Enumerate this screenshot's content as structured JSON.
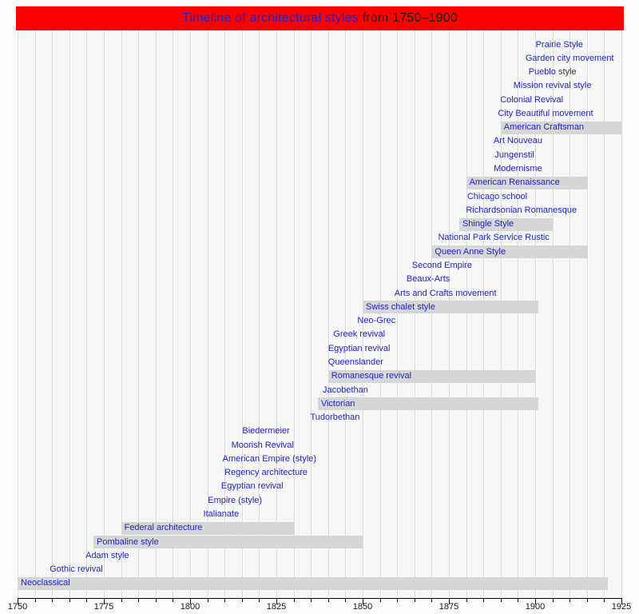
{
  "title": {
    "linked_part": "Timeline of architectural styles",
    "plain_part": " from 1750–1900"
  },
  "colors": {
    "banner_bg": "#fe0000",
    "link_blue": "#2121cc",
    "plain_text": "#1a1a1a",
    "bar_fill": "#d6d6d6",
    "grid_line": "#d9d9d9",
    "plot_bg": "#f6f6f6",
    "page_bg": "#fbfbfb",
    "axis": "#000000"
  },
  "chart_data": {
    "type": "timeline",
    "title": "Timeline of architectural styles from 1750–1900",
    "x_axis": {
      "min": 1750,
      "max": 1925,
      "major_tick_step": 25,
      "minor_tick_step": 5,
      "tick_labels": [
        "1750",
        "1775",
        "1800",
        "1825",
        "1850",
        "1875",
        "1900",
        "1925"
      ],
      "grid": "minor vertical lines every 5 years"
    },
    "legend": "gray bars mark the depicted period for highlighted styles; blue text entries are link labels anchored at their period",
    "styles": [
      {
        "label": "Prairie Style",
        "label_year": 1907,
        "bar": null
      },
      {
        "label": "Garden city movement",
        "label_year": 1910,
        "bar": null
      },
      {
        "label": "Pueblo",
        "label_suffix": " style",
        "label_year": 1905,
        "bar": null
      },
      {
        "label": "Mission revival style",
        "label_year": 1905,
        "bar": null
      },
      {
        "label": "Colonial Revival",
        "label_year": 1899,
        "bar": null
      },
      {
        "label": "City Beautiful movement",
        "label_year": 1903,
        "bar": null
      },
      {
        "label": "American Craftsman",
        "label_year": 1890,
        "bar": {
          "start": 1890,
          "end": 1925
        }
      },
      {
        "label": "Art Nouveau",
        "label_year": 1895,
        "bar": null
      },
      {
        "label": "Jungenstil",
        "label_year": 1894,
        "bar": null
      },
      {
        "label": "Modernisme",
        "label_year": 1895,
        "bar": null
      },
      {
        "label": "American Renaissance",
        "label_year": 1880,
        "bar": {
          "start": 1880,
          "end": 1915
        }
      },
      {
        "label": "Chicago school",
        "label_year": 1889,
        "bar": null
      },
      {
        "label": "Richardsonian Romanesque",
        "label_year": 1896,
        "bar": null
      },
      {
        "label": "Shingle Style",
        "label_year": 1878,
        "bar": {
          "start": 1878,
          "end": 1905
        }
      },
      {
        "label": "National Park Service Rustic",
        "label_year": 1888,
        "bar": null
      },
      {
        "label": "Queen Anne Style",
        "label_year": 1870,
        "bar": {
          "start": 1870,
          "end": 1915
        }
      },
      {
        "label": "Second Empire",
        "label_year": 1873,
        "bar": null
      },
      {
        "label": "Beaux-Arts",
        "label_year": 1869,
        "bar": null
      },
      {
        "label": "Arts and Crafts movement",
        "label_year": 1874,
        "bar": null
      },
      {
        "label": "Swiss chalet style",
        "label_year": 1850,
        "bar": {
          "start": 1850,
          "end": 1901
        }
      },
      {
        "label": "Neo-Grec",
        "label_year": 1854,
        "bar": null
      },
      {
        "label": "Greek revival",
        "label_year": 1849,
        "bar": null
      },
      {
        "label": "Egyptian revival",
        "label_year": 1849,
        "bar": null
      },
      {
        "label": "Queenslander",
        "label_year": 1848,
        "bar": null
      },
      {
        "label": "Romanesque revival",
        "label_year": 1840,
        "bar": {
          "start": 1840,
          "end": 1900
        }
      },
      {
        "label": "Jacobethan",
        "label_year": 1845,
        "bar": null
      },
      {
        "label": "Victorian",
        "label_year": 1837,
        "bar": {
          "start": 1837,
          "end": 1901
        }
      },
      {
        "label": "Tudorbethan",
        "label_year": 1842,
        "bar": null
      },
      {
        "label": "Biedermeier",
        "label_year": 1822,
        "bar": null
      },
      {
        "label": "Moorish Revival",
        "label_year": 1821,
        "bar": null
      },
      {
        "label": "American Empire (style)",
        "label_year": 1823,
        "bar": null
      },
      {
        "label": "Regency architecture",
        "label_year": 1822,
        "bar": null
      },
      {
        "label": "Egyptian revival",
        "label_year": 1818,
        "bar": null
      },
      {
        "label": "Empire (style)",
        "label_year": 1813,
        "bar": null
      },
      {
        "label": "Italianate",
        "label_year": 1809,
        "bar": null
      },
      {
        "label": "Federal architecture",
        "label_year": 1780,
        "bar": {
          "start": 1780,
          "end": 1830
        }
      },
      {
        "label": "Pombaline style",
        "label_year": 1772,
        "bar": {
          "start": 1772,
          "end": 1850
        }
      },
      {
        "label": "Adam style",
        "label_year": 1776,
        "bar": null
      },
      {
        "label": "Gothic revival",
        "label_year": 1767,
        "bar": null
      },
      {
        "label": "Neoclassical",
        "label_year": 1750,
        "bar": {
          "start": 1750,
          "end": 1921
        }
      }
    ]
  }
}
